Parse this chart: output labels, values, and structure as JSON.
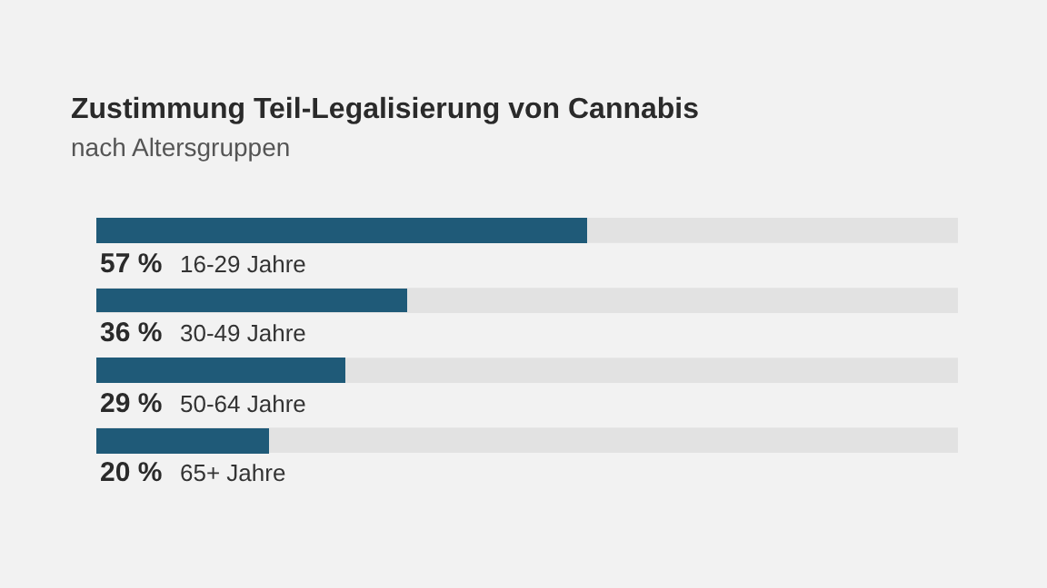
{
  "chart_data": {
    "type": "bar",
    "orientation": "horizontal",
    "title": "Zustimmung Teil-Legalisierung von Cannabis",
    "subtitle": "nach Altersgruppen",
    "categories": [
      "16-29 Jahre",
      "30-49 Jahre",
      "50-64 Jahre",
      "65+ Jahre"
    ],
    "values": [
      57,
      36,
      29,
      20
    ],
    "value_labels": [
      "57 %",
      "36 %",
      "29 %",
      "20 %"
    ],
    "color": "#1f5a78",
    "xlim": [
      0,
      100
    ],
    "tick_labels": false,
    "grid": false,
    "legend": false
  }
}
